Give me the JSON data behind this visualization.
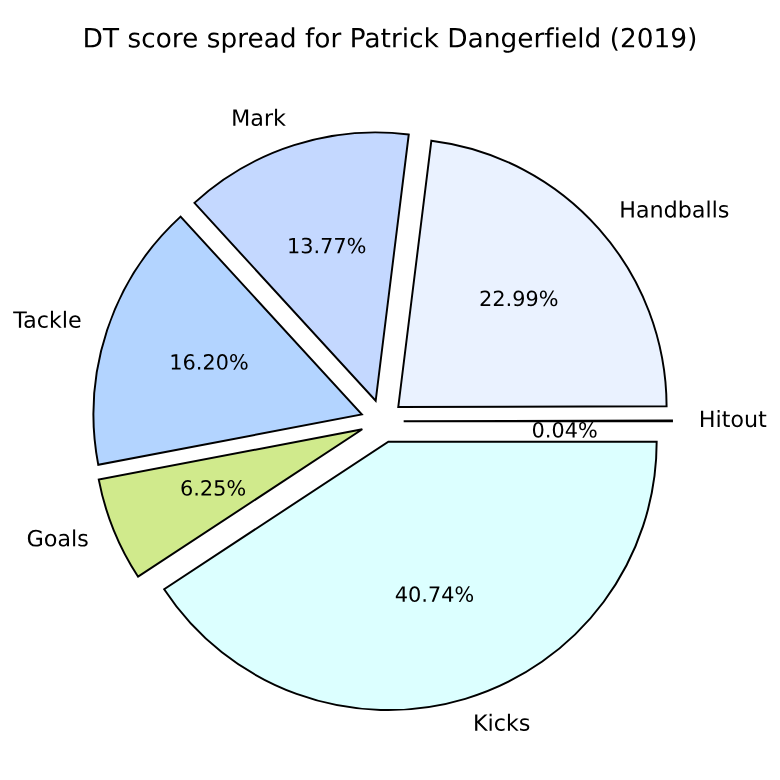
{
  "chart_data": {
    "type": "pie",
    "title": "DT score spread for Patrick Dangerfield (2019)",
    "categories": [
      "Hitout",
      "Handballs",
      "Mark",
      "Tackle",
      "Goals",
      "Kicks"
    ],
    "values": [
      0.04,
      22.99,
      13.77,
      16.2,
      6.25,
      40.74
    ],
    "value_labels": [
      "0.04%",
      "22.99%",
      "13.77%",
      "16.20%",
      "6.25%",
      "40.74%"
    ],
    "colors": [
      "#f0f8ff",
      "#eaf2ff",
      "#c4d8ff",
      "#b3d4ff",
      "#d0ea8c",
      "#dcffff"
    ],
    "legend": false
  }
}
